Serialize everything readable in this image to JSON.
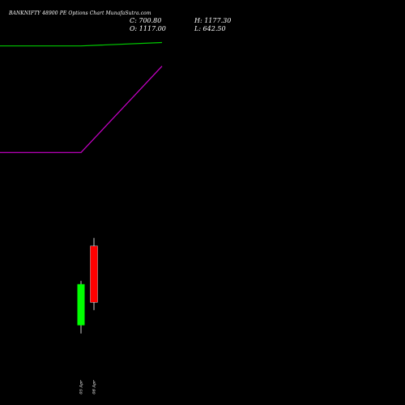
{
  "header": {
    "title": "BANKNIFTY 48900  PE Options  Chart MunafaSutra.com",
    "close": "C: 700.80",
    "open": "O: 1117.00",
    "high": "H: 1177.30",
    "low": "L: 642.50"
  },
  "colors": {
    "background": "#000000",
    "bullish": "#00ff00",
    "bearish": "#ff0000",
    "line_green": "#00cc00",
    "line_purple": "#cc00cc",
    "wick": "#ffffff"
  },
  "chart_data": {
    "type": "candlestick",
    "categories": [
      "05 Apr",
      "08 Apr"
    ],
    "candles": [
      {
        "date": "05 Apr",
        "open": 530,
        "high": 860,
        "low": 470,
        "close": 835
      },
      {
        "date": "08 Apr",
        "open": 1117.0,
        "high": 1177.3,
        "low": 642.5,
        "close": 700.8
      }
    ],
    "overlays": [
      {
        "color": "green",
        "points": [
          {
            "x": 0,
            "y": 2600
          },
          {
            "x": 1,
            "y": 2600
          },
          {
            "x": 2,
            "y": 2625
          }
        ]
      },
      {
        "color": "purple",
        "points": [
          {
            "x": 0,
            "y": 1810
          },
          {
            "x": 1,
            "y": 1810
          },
          {
            "x": 2,
            "y": 2450
          }
        ]
      }
    ],
    "ylim": [
      300,
      2700
    ],
    "grid": false,
    "legend": "none"
  }
}
